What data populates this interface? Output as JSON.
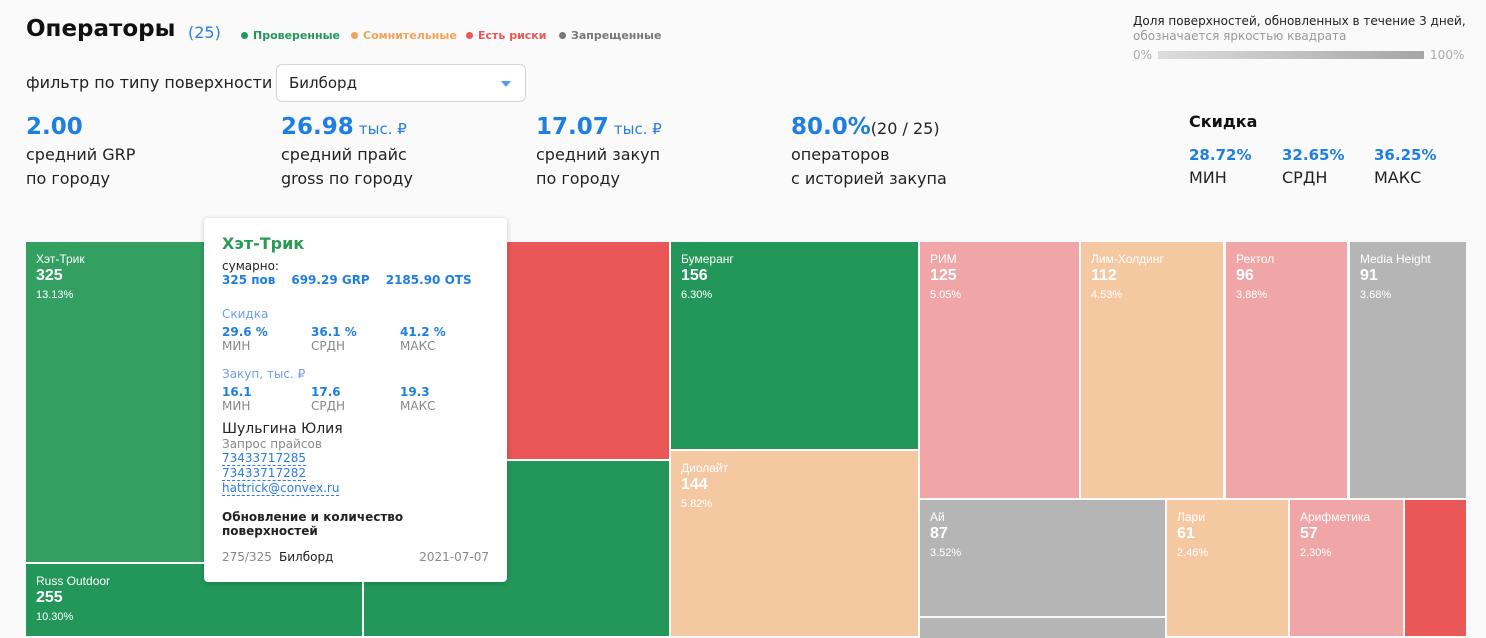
{
  "header": {
    "title": "Операторы",
    "count": "(25)",
    "legend": [
      {
        "label": "Проверенные",
        "color": "#23975a"
      },
      {
        "label": "Сомнительные",
        "color": "#f3a25a"
      },
      {
        "label": "Есть риски",
        "color": "#e95757"
      },
      {
        "label": "Запрещенные",
        "color": "#777777"
      }
    ]
  },
  "filter": {
    "label": "фильтр по типу поверхности",
    "value": "Билборд"
  },
  "stats": [
    {
      "value": "2.00",
      "unit": "",
      "line1": "средний GRP",
      "line2": "по городу"
    },
    {
      "value": "26.98",
      "unit": "тыс. ₽",
      "line1": "средний прайс",
      "line2": "gross по городу"
    },
    {
      "value": "17.07",
      "unit": "тыс. ₽",
      "line1": "средний закуп",
      "line2": "по городу"
    },
    {
      "value": "80.0%",
      "unit": "(20 / 25)",
      "line1": "операторов",
      "line2": "с историей закупа"
    }
  ],
  "brightness_legend": {
    "line1": "Доля поверхностей, обновленных в течение 3 дней,",
    "line2": "обозначается яркостью квадрата",
    "min": "0%",
    "max": "100%"
  },
  "discount": {
    "title": "Скидка",
    "items": [
      {
        "value": "28.72%",
        "label": "МИН"
      },
      {
        "value": "32.65%",
        "label": "СРДН"
      },
      {
        "value": "36.25%",
        "label": "МАКС"
      }
    ]
  },
  "treemap": [
    {
      "name": "Хэт-Трик",
      "count": "325",
      "pct": "13.13%",
      "status": "verified"
    },
    {
      "name": "Russ Outdoor",
      "count": "255",
      "pct": "10.30%",
      "status": "verified"
    },
    {
      "name": "",
      "count": "",
      "pct": "",
      "status": "risk"
    },
    {
      "name": "",
      "count": "",
      "pct": "",
      "status": "verified"
    },
    {
      "name": "Бумеранг",
      "count": "156",
      "pct": "6.30%",
      "status": "verified"
    },
    {
      "name": "Диолайт",
      "count": "144",
      "pct": "5.82%",
      "status": "doubtful"
    },
    {
      "name": "РИМ",
      "count": "125",
      "pct": "5.05%",
      "status": "risk-light"
    },
    {
      "name": "Лим-Холдинг",
      "count": "112",
      "pct": "4.53%",
      "status": "doubtful"
    },
    {
      "name": "Ректол",
      "count": "96",
      "pct": "3.88%",
      "status": "risk-light"
    },
    {
      "name": "Media Height",
      "count": "91",
      "pct": "3.68%",
      "status": "banned"
    },
    {
      "name": "Ай",
      "count": "87",
      "pct": "3.52%",
      "status": "banned"
    },
    {
      "name": "",
      "count": "",
      "pct": "",
      "status": "banned"
    },
    {
      "name": "Лари",
      "count": "61",
      "pct": "2.46%",
      "status": "doubtful"
    },
    {
      "name": "Арифметика",
      "count": "57",
      "pct": "2.30%",
      "status": "risk-light"
    },
    {
      "name": "",
      "count": "",
      "pct": "",
      "status": "risk"
    }
  ],
  "colors": {
    "verified": "#23975a",
    "verified-light": "#33a062",
    "doubtful": "#f4c9a2",
    "risk": "#e95757",
    "risk-light": "#f0a6a6",
    "banned": "#b5b5b5"
  },
  "tooltip": {
    "name": "Хэт-Трик",
    "sum_label": "сумарно:",
    "surfaces": "325 пов",
    "grp": "699.29 GRP",
    "ots": "2185.90 OTS",
    "discount_label": "Скидка",
    "discount": [
      {
        "value": "29.6 %",
        "label": "МИН"
      },
      {
        "value": "36.1 %",
        "label": "СРДН"
      },
      {
        "value": "41.2 %",
        "label": "МАКС"
      }
    ],
    "purchase_label": "Закуп, тыс. ₽",
    "purchase": [
      {
        "value": "16.1",
        "label": "МИН"
      },
      {
        "value": "17.6",
        "label": "СРДН"
      },
      {
        "value": "19.3",
        "label": "МАКС"
      }
    ],
    "contact": "Шульгина Юлия",
    "contact_role": "Запрос прайсов",
    "phone1": "73433717285",
    "phone2": "73433717282",
    "email": "hattrick@convex.ru",
    "update_title": "Обновление и количество поверхностей",
    "updated_count": "275/325",
    "surface_type": "Билборд",
    "date": "2021-07-07"
  }
}
